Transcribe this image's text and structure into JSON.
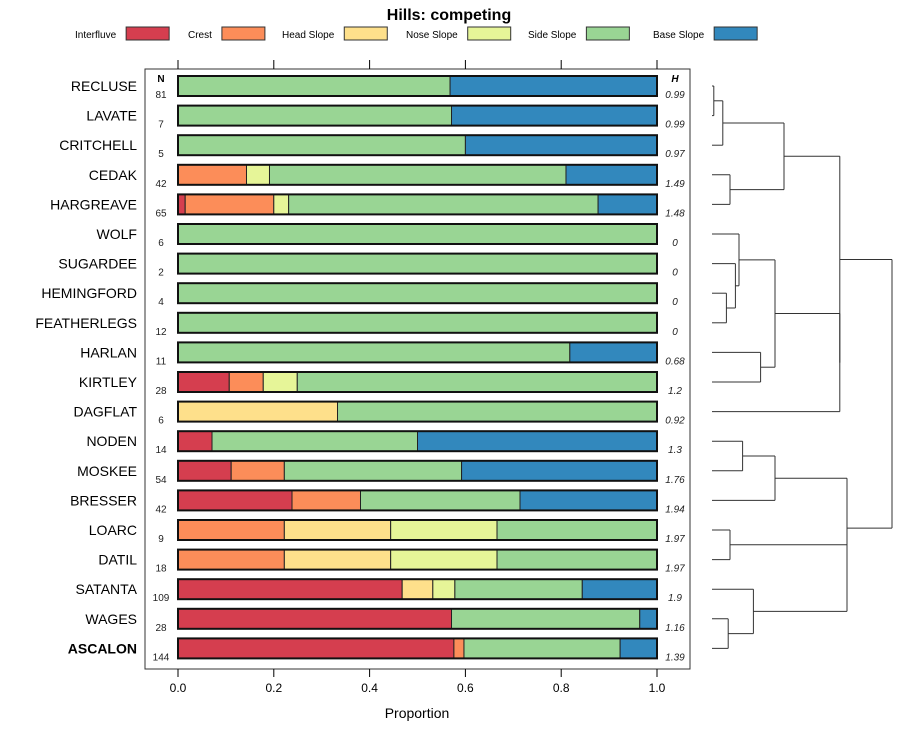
{
  "chart_data": {
    "type": "bar",
    "stacked": true,
    "orientation": "horizontal",
    "title": "Hills: competing",
    "xlabel": "Proportion",
    "ylabel": "",
    "xlim": [
      0,
      1
    ],
    "xticks": [
      "0.0",
      "0.2",
      "0.4",
      "0.6",
      "0.8",
      "1.0"
    ],
    "xtick_values": [
      0,
      0.2,
      0.4,
      0.6,
      0.8,
      1.0
    ],
    "legend_position": "top",
    "n_header": "N",
    "h_header": "H",
    "legend": [
      {
        "name": "Interfluve",
        "color": "#d53e4f"
      },
      {
        "name": "Crest",
        "color": "#fc8d59"
      },
      {
        "name": "Head Slope",
        "color": "#fee08b"
      },
      {
        "name": "Nose Slope",
        "color": "#e6f598"
      },
      {
        "name": "Side Slope",
        "color": "#99d594"
      },
      {
        "name": "Base Slope",
        "color": "#3288bd"
      }
    ],
    "categories": [
      "RECLUSE",
      "LAVATE",
      "CRITCHELL",
      "CEDAK",
      "HARGREAVE",
      "WOLF",
      "SUGARDEE",
      "HEMINGFORD",
      "FEATHERLEGS",
      "HARLAN",
      "KIRTLEY",
      "DAGFLAT",
      "NODEN",
      "MOSKEE",
      "BRESSER",
      "LOARC",
      "DATIL",
      "SATANTA",
      "WAGES",
      "ASCALON"
    ],
    "highlighted_category": "ASCALON",
    "N": [
      81,
      7,
      5,
      42,
      65,
      6,
      2,
      4,
      12,
      11,
      28,
      6,
      14,
      54,
      42,
      9,
      18,
      109,
      28,
      144
    ],
    "H": [
      "0.99",
      "0.99",
      "0.97",
      "1.49",
      "1.48",
      "0",
      "0",
      "0",
      "0",
      "0.68",
      "1.2",
      "0.92",
      "1.3",
      "1.76",
      "1.94",
      "1.97",
      "1.97",
      "1.9",
      "1.16",
      "1.39"
    ],
    "series": [
      {
        "name": "Interfluve",
        "values": [
          0,
          0,
          0,
          0,
          0.015,
          0,
          0,
          0,
          0,
          0,
          0.107,
          0,
          0.071,
          0.111,
          0.238,
          0,
          0,
          0.468,
          0.571,
          0.576
        ]
      },
      {
        "name": "Crest",
        "values": [
          0,
          0,
          0,
          0.143,
          0.185,
          0,
          0,
          0,
          0,
          0,
          0.071,
          0,
          0,
          0.111,
          0.143,
          0.222,
          0.222,
          0,
          0,
          0.021
        ]
      },
      {
        "name": "Head Slope",
        "values": [
          0,
          0,
          0,
          0,
          0,
          0,
          0,
          0,
          0,
          0,
          0,
          0.333,
          0,
          0,
          0,
          0.222,
          0.222,
          0.064,
          0,
          0
        ]
      },
      {
        "name": "Nose Slope",
        "values": [
          0,
          0,
          0,
          0.048,
          0.031,
          0,
          0,
          0,
          0,
          0,
          0.071,
          0,
          0,
          0,
          0,
          0.222,
          0.222,
          0.046,
          0,
          0
        ]
      },
      {
        "name": "Side Slope",
        "values": [
          0.568,
          0.571,
          0.6,
          0.619,
          0.646,
          1,
          1,
          1,
          1,
          0.818,
          0.75,
          0.667,
          0.429,
          0.37,
          0.333,
          0.333,
          0.333,
          0.266,
          0.393,
          0.326
        ]
      },
      {
        "name": "Base Slope",
        "values": [
          0.432,
          0.429,
          0.4,
          0.19,
          0.123,
          0,
          0,
          0,
          0,
          0.182,
          0,
          0,
          0.5,
          0.407,
          0.286,
          0,
          0,
          0.156,
          0.036,
          0.076
        ]
      }
    ],
    "dendrogram": {
      "merges": [
        {
          "left": "RECLUSE",
          "right": "LAVATE",
          "height": 0.01
        },
        {
          "left": "RECLUSE+LAVATE",
          "right": "CRITCHELL",
          "height": 0.06
        },
        {
          "left": "CEDAK",
          "right": "HARGREAVE",
          "height": 0.1
        },
        {
          "left": "RECLUSE+LAVATE+CRITCHELL",
          "right": "CEDAK+HARGREAVE",
          "height": 0.4
        },
        {
          "left": "HEMINGFORD",
          "right": "FEATHERLEGS",
          "height": 0.08
        },
        {
          "left": "SUGARDEE",
          "right": "HEMINGFORD+FEATHERLEGS",
          "height": 0.13
        },
        {
          "left": "WOLF",
          "right": "SUGARDEE+HEMINGFORD+FEATHERLEGS",
          "height": 0.15
        },
        {
          "left": "HARLAN",
          "right": "KIRTLEY",
          "height": 0.27
        },
        {
          "left": "WOLF..FEATHERLEGS",
          "right": "HARLAN+KIRTLEY",
          "height": 0.35
        },
        {
          "left": "upper",
          "right": "middle+DAGFLAT",
          "height": 0.71
        },
        {
          "left": "NODEN",
          "right": "MOSKEE",
          "height": 0.17
        },
        {
          "left": "NODEN+MOSKEE",
          "right": "BRESSER",
          "height": 0.35
        },
        {
          "left": "LOARC",
          "right": "DATIL",
          "height": 0.1
        },
        {
          "left": "WAGES",
          "right": "ASCALON",
          "height": 0.09
        },
        {
          "left": "SATANTA",
          "right": "WAGES+ASCALON",
          "height": 0.23
        },
        {
          "left": "NODEN..BRESSER",
          "right": "LOARC..ASCALON",
          "height": 0.75
        },
        {
          "left": "top",
          "right": "bottom",
          "height": 1.0
        }
      ]
    }
  }
}
